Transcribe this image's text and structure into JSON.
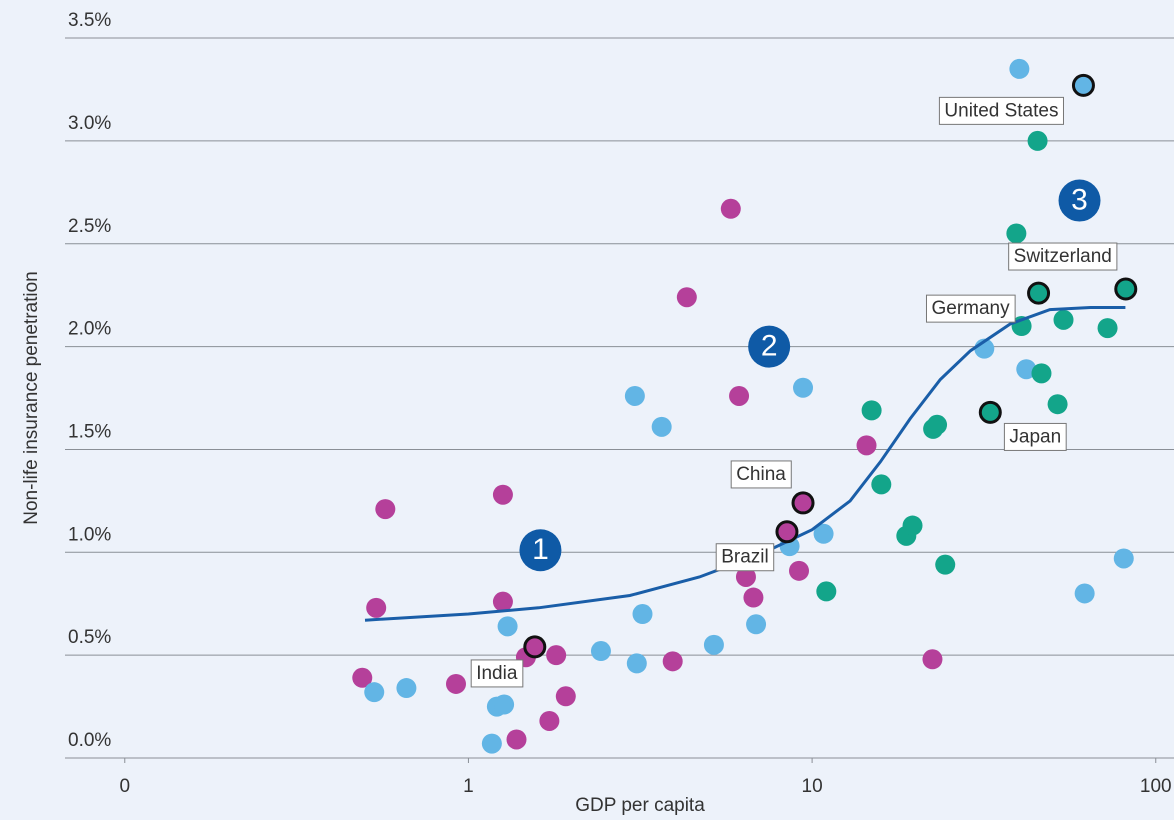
{
  "chart_data": {
    "type": "scatter",
    "x_label": "GDP per capita",
    "y_label": "Non-life insurance penetration",
    "log_x": true,
    "grid": true,
    "xlim": [
      0.067,
      113
    ],
    "ylim": [
      0,
      3.685
    ],
    "xticks": [
      {
        "value": 0.1,
        "label": "0"
      },
      1,
      10,
      100
    ],
    "yticks": [
      {
        "value": 0,
        "label": "0.0%"
      },
      {
        "value": 0.5,
        "label": "0.5%"
      },
      {
        "value": 1,
        "label": "1.0%"
      },
      {
        "value": 1.5,
        "label": "1.5%"
      },
      {
        "value": 2,
        "label": "2.0%"
      },
      {
        "value": 2.5,
        "label": "2.5%"
      },
      {
        "value": 3,
        "label": "3.0%"
      },
      {
        "value": 3.5,
        "label": "3.5%"
      }
    ],
    "series": [
      {
        "color": "#b5409a",
        "x": [
          0.491,
          0.539,
          0.573,
          0.92,
          1.26,
          1.26,
          1.38,
          1.47,
          1.72,
          1.8,
          1.92,
          3.93,
          4.32,
          5.8,
          6.13,
          6.42,
          6.75,
          9.16,
          14.4,
          22.4
        ],
        "values": [
          0.39,
          0.73,
          1.21,
          0.36,
          1.28,
          0.76,
          0.09,
          0.49,
          0.18,
          0.5,
          0.3,
          0.47,
          2.24,
          2.67,
          1.76,
          0.88,
          0.78,
          0.91,
          1.52,
          0.48
        ]
      },
      {
        "color": "#62b5e5",
        "x": [
          0.532,
          0.66,
          1.17,
          1.21,
          1.27,
          1.3,
          2.43,
          3.05,
          3.09,
          3.21,
          3.65,
          5.18,
          6.87,
          9.41,
          8.6,
          10.8,
          31.7,
          40.1,
          42.0,
          62.1,
          80.7
        ],
        "values": [
          0.32,
          0.34,
          0.07,
          0.25,
          0.26,
          0.64,
          0.52,
          1.76,
          0.46,
          0.7,
          1.61,
          0.55,
          0.65,
          1.8,
          1.03,
          1.09,
          1.99,
          3.35,
          1.89,
          0.8,
          0.97
        ]
      },
      {
        "color": "#13a58a",
        "x": [
          11.0,
          14.9,
          15.9,
          18.8,
          19.6,
          22.5,
          23.1,
          24.4,
          39.3,
          40.7,
          45.3,
          46.5,
          51.8,
          53.9,
          72.4
        ],
        "values": [
          0.81,
          1.69,
          1.33,
          1.08,
          1.13,
          1.6,
          1.62,
          0.94,
          2.55,
          2.1,
          3.0,
          1.87,
          1.72,
          2.13,
          2.09
        ]
      }
    ],
    "highlighted": [
      {
        "label": "India",
        "x": 1.56,
        "y": 0.54,
        "color": "#b5409a"
      },
      {
        "label": "Brazil",
        "x": 8.45,
        "y": 1.1,
        "color": "#b5409a"
      },
      {
        "label": "China",
        "x": 9.41,
        "y": 1.24,
        "color": "#b5409a"
      },
      {
        "label": "Japan",
        "x": 33.0,
        "y": 1.68,
        "color": "#13a58a"
      },
      {
        "label": "Germany",
        "x": 45.6,
        "y": 2.26,
        "color": "#13a58a"
      },
      {
        "label": "Switzerland",
        "x": 81.8,
        "y": 2.28,
        "color": "#13a58a"
      },
      {
        "label": "United States",
        "x": 61.6,
        "y": 3.27,
        "color": "#62b5e5"
      }
    ],
    "trend": {
      "color": "#1a5ea8",
      "x": [
        0.5,
        1,
        1.6,
        2.95,
        4.7,
        7.05,
        10,
        12.9,
        15.8,
        19.3,
        23.6,
        28.9,
        37.7,
        49.2,
        64.6,
        81.6
      ],
      "values": [
        0.67,
        0.7,
        0.73,
        0.79,
        0.88,
        0.99,
        1.11,
        1.25,
        1.44,
        1.65,
        1.84,
        1.98,
        2.11,
        2.18,
        2.19,
        2.19
      ]
    },
    "annotations": [
      {
        "text": "1",
        "x": 1.62,
        "y": 1.01
      },
      {
        "text": "2",
        "x": 7.5,
        "y": 2.0
      },
      {
        "text": "3",
        "x": 60.0,
        "y": 2.71
      }
    ]
  }
}
